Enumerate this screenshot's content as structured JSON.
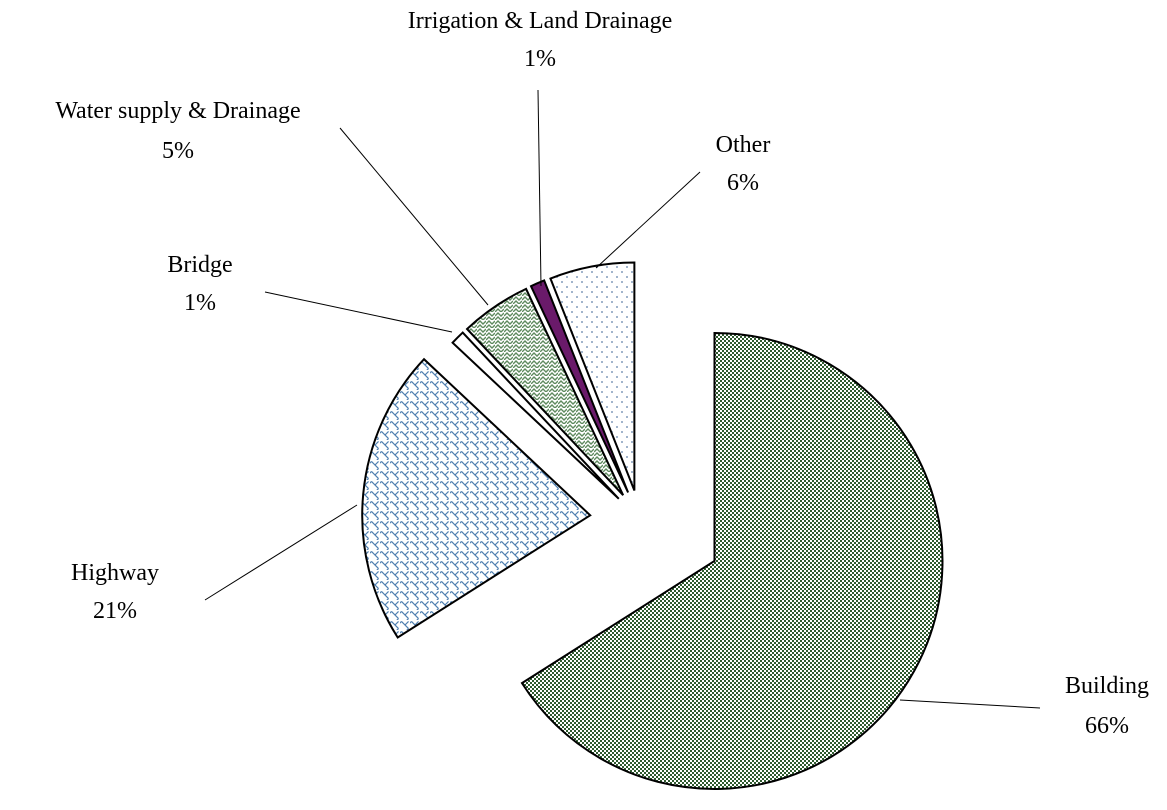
{
  "chart_data": {
    "type": "pie",
    "categories": [
      "Building",
      "Highway",
      "Bridge",
      "Water supply & Drainage",
      "Irrigation & Land Drainage",
      "Other"
    ],
    "values": [
      66,
      21,
      1,
      5,
      1,
      6
    ],
    "value_labels": [
      "66%",
      "21%",
      "1%",
      "5%",
      "1%",
      "6%"
    ],
    "colors": [
      "#2e5a2e",
      "#4f7fb0",
      "#ffffff",
      "#5f8a5f",
      "#6a1a6a",
      "#5f7fa8"
    ]
  }
}
